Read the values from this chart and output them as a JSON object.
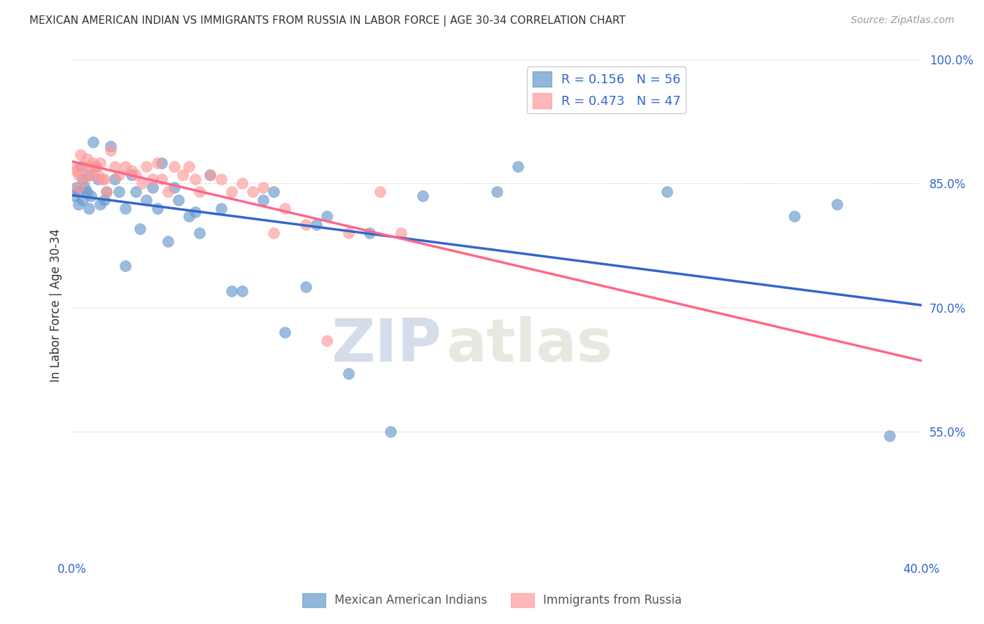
{
  "title": "MEXICAN AMERICAN INDIAN VS IMMIGRANTS FROM RUSSIA IN LABOR FORCE | AGE 30-34 CORRELATION CHART",
  "source": "Source: ZipAtlas.com",
  "ylabel": "In Labor Force | Age 30-34",
  "x_min": 0.0,
  "x_max": 0.4,
  "y_min": 0.4,
  "y_max": 1.005,
  "blue_color": "#6699CC",
  "pink_color": "#FF9999",
  "blue_line_color": "#3366CC",
  "pink_line_color": "#FF6688",
  "legend_blue_r": "R = 0.156",
  "legend_blue_n": "N = 56",
  "legend_pink_r": "R = 0.473",
  "legend_pink_n": "N = 47",
  "watermark_zip": "ZIP",
  "watermark_atlas": "atlas",
  "blue_scatter_x": [
    0.001,
    0.002,
    0.003,
    0.003,
    0.004,
    0.005,
    0.005,
    0.006,
    0.007,
    0.008,
    0.008,
    0.009,
    0.01,
    0.011,
    0.012,
    0.013,
    0.015,
    0.016,
    0.018,
    0.02,
    0.022,
    0.025,
    0.025,
    0.028,
    0.03,
    0.032,
    0.035,
    0.038,
    0.04,
    0.042,
    0.045,
    0.048,
    0.05,
    0.055,
    0.058,
    0.06,
    0.065,
    0.07,
    0.075,
    0.08,
    0.09,
    0.095,
    0.1,
    0.11,
    0.115,
    0.12,
    0.13,
    0.14,
    0.15,
    0.165,
    0.2,
    0.21,
    0.28,
    0.34,
    0.36,
    0.385
  ],
  "blue_scatter_y": [
    0.835,
    0.845,
    0.84,
    0.825,
    0.87,
    0.855,
    0.83,
    0.845,
    0.84,
    0.86,
    0.82,
    0.835,
    0.9,
    0.87,
    0.855,
    0.825,
    0.83,
    0.84,
    0.895,
    0.855,
    0.84,
    0.75,
    0.82,
    0.86,
    0.84,
    0.795,
    0.83,
    0.845,
    0.82,
    0.875,
    0.78,
    0.845,
    0.83,
    0.81,
    0.815,
    0.79,
    0.86,
    0.82,
    0.72,
    0.72,
    0.83,
    0.84,
    0.67,
    0.725,
    0.8,
    0.81,
    0.62,
    0.79,
    0.55,
    0.835,
    0.84,
    0.87,
    0.84,
    0.81,
    0.825,
    0.545
  ],
  "pink_scatter_x": [
    0.001,
    0.002,
    0.003,
    0.003,
    0.004,
    0.005,
    0.006,
    0.007,
    0.008,
    0.009,
    0.01,
    0.011,
    0.012,
    0.013,
    0.014,
    0.015,
    0.016,
    0.018,
    0.02,
    0.022,
    0.025,
    0.028,
    0.03,
    0.033,
    0.035,
    0.038,
    0.04,
    0.042,
    0.045,
    0.048,
    0.052,
    0.055,
    0.058,
    0.06,
    0.065,
    0.07,
    0.075,
    0.08,
    0.085,
    0.09,
    0.095,
    0.1,
    0.11,
    0.12,
    0.13,
    0.145,
    0.155
  ],
  "pink_scatter_y": [
    0.87,
    0.865,
    0.845,
    0.86,
    0.885,
    0.87,
    0.855,
    0.88,
    0.87,
    0.86,
    0.875,
    0.87,
    0.86,
    0.875,
    0.855,
    0.855,
    0.84,
    0.89,
    0.87,
    0.86,
    0.87,
    0.865,
    0.86,
    0.85,
    0.87,
    0.855,
    0.875,
    0.855,
    0.84,
    0.87,
    0.86,
    0.87,
    0.855,
    0.84,
    0.86,
    0.855,
    0.84,
    0.85,
    0.84,
    0.845,
    0.79,
    0.82,
    0.8,
    0.66,
    0.79,
    0.84,
    0.79
  ],
  "grid_color": "#DDDDDD",
  "bg_color": "#FFFFFF",
  "axis_color": "#3366CC",
  "title_color": "#333333",
  "ylabel_color": "#333333"
}
